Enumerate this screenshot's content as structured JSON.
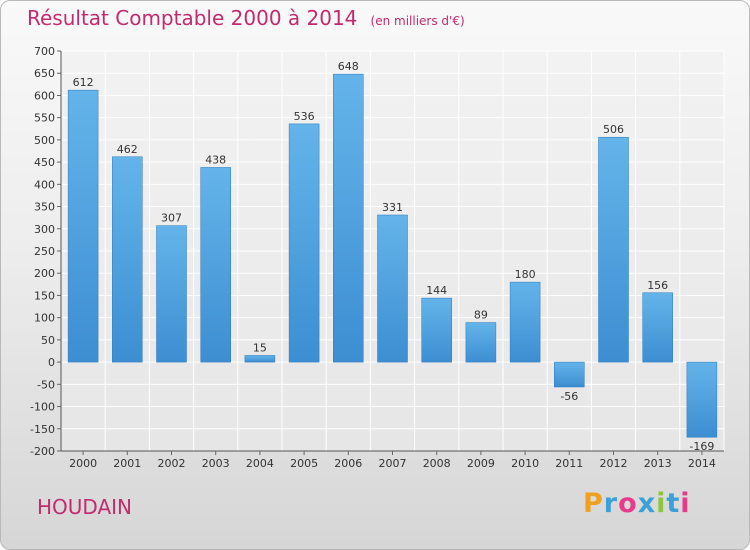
{
  "title": "Résultat Comptable 2000 à 2014",
  "unit": "(en milliers d'€)",
  "commune": "HOUDAIN",
  "logo": {
    "letters": [
      "P",
      "r",
      "o",
      "x",
      "i",
      "t",
      "i"
    ],
    "colors": [
      "#f0a020",
      "#3aa0d8",
      "#e83a8a",
      "#3aa0d8",
      "#8cc63f",
      "#3aa0d8",
      "#e83a8a"
    ]
  },
  "chart_data": {
    "type": "bar",
    "title": "Résultat Comptable 2000 à 2014",
    "subtitle": "(en milliers d'€)",
    "xlabel": "",
    "ylabel": "",
    "categories": [
      "2000",
      "2001",
      "2002",
      "2003",
      "2004",
      "2005",
      "2006",
      "2007",
      "2008",
      "2009",
      "2010",
      "2011",
      "2012",
      "2013",
      "2014"
    ],
    "values": [
      612,
      462,
      307,
      438,
      15,
      536,
      648,
      331,
      144,
      89,
      180,
      -56,
      506,
      156,
      -169
    ],
    "value_labels": [
      "612",
      "462",
      "307",
      "438",
      "15",
      "536",
      "648",
      "331",
      "144",
      "89",
      "180",
      "-56",
      "506",
      "156",
      "-169"
    ],
    "ylim": [
      -200,
      700
    ],
    "yticks": [
      700,
      650,
      600,
      550,
      500,
      450,
      400,
      350,
      300,
      250,
      200,
      150,
      100,
      50,
      0,
      -50,
      -100,
      -150,
      -200
    ],
    "grid": true,
    "bar_color": "#3d8ed2",
    "bar_color_light": "#64b4ea"
  }
}
